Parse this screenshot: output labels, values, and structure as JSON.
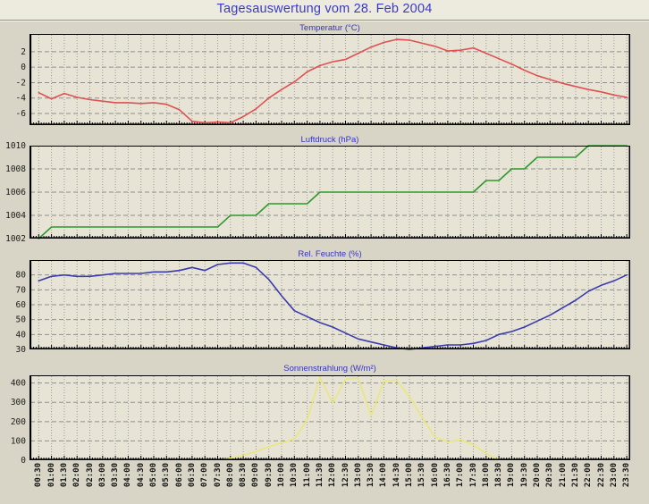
{
  "page": {
    "title": "Tagesauswertung vom 28. Feb 2004"
  },
  "colors": {
    "title_text": "#3a3ac6",
    "subtitle_text": "#3434c4",
    "page_bg": "#d8d5c6",
    "titlebar_bg": "#edeade",
    "plot_bg": "#e7e4d6",
    "grid": "#8f8f8f",
    "frame": "#000000",
    "temperature_line": "#e05050",
    "pressure_line": "#2d9a2d",
    "humidity_line": "#3a3aae",
    "radiation_line": "#e9e77c"
  },
  "x_labels": [
    "00:30",
    "01:00",
    "01:30",
    "02:00",
    "02:30",
    "03:00",
    "03:30",
    "04:00",
    "04:30",
    "05:00",
    "05:30",
    "06:00",
    "06:30",
    "07:00",
    "07:30",
    "08:00",
    "08:30",
    "09:00",
    "09:30",
    "10:00",
    "10:30",
    "11:00",
    "11:30",
    "12:00",
    "12:30",
    "13:00",
    "13:30",
    "14:00",
    "14:30",
    "15:00",
    "15:30",
    "16:00",
    "16:30",
    "17:00",
    "17:30",
    "18:00",
    "18:30",
    "19:00",
    "19:30",
    "20:00",
    "20:30",
    "21:00",
    "21:30",
    "22:00",
    "22:30",
    "23:00",
    "23:30"
  ],
  "chart_data": [
    {
      "type": "line",
      "title": "Temperatur (°C)",
      "color": "#e05050",
      "ymin": -7.5,
      "ymax": 4.3,
      "yticks": [
        2,
        0,
        -2,
        -4,
        -6
      ],
      "grid": true,
      "values": [
        -3.3,
        -4.1,
        -3.4,
        -3.9,
        -4.2,
        -4.4,
        -4.6,
        -4.6,
        -4.7,
        -4.6,
        -4.8,
        -5.5,
        -7.0,
        -7.2,
        -7.1,
        -7.2,
        -6.4,
        -5.4,
        -4.0,
        -2.9,
        -1.9,
        -0.6,
        0.2,
        0.7,
        1.0,
        1.8,
        2.6,
        3.2,
        3.6,
        3.5,
        3.1,
        2.7,
        2.1,
        2.2,
        2.5,
        1.8,
        1.1,
        0.4,
        -0.4,
        -1.1,
        -1.6,
        -2.1,
        -2.5,
        -2.9,
        -3.2,
        -3.6,
        -3.9
      ]
    },
    {
      "type": "line",
      "title": "Luftdruck (hPa)",
      "color": "#2d9a2d",
      "ymin": 1002,
      "ymax": 1010,
      "yticks": [
        1010,
        1008,
        1006,
        1004,
        1002
      ],
      "grid": true,
      "values": [
        1002,
        1003,
        1003,
        1003,
        1003,
        1003,
        1003,
        1003,
        1003,
        1003,
        1003,
        1003,
        1003,
        1003,
        1003,
        1004,
        1004,
        1004,
        1005,
        1005,
        1005,
        1005,
        1006,
        1006,
        1006,
        1006,
        1006,
        1006,
        1006,
        1006,
        1006,
        1006,
        1006,
        1006,
        1006,
        1007,
        1007,
        1008,
        1008,
        1009,
        1009,
        1009,
        1009,
        1010,
        1010,
        1010,
        1010
      ]
    },
    {
      "type": "line",
      "title": "Rel. Feuchte (%)",
      "color": "#3a3aae",
      "ymin": 30,
      "ymax": 90,
      "yticks": [
        80,
        70,
        60,
        50,
        40,
        30
      ],
      "grid": true,
      "values": [
        76,
        79,
        80,
        79,
        79,
        80,
        81,
        81,
        81,
        82,
        82,
        83,
        85,
        83,
        87,
        88,
        88,
        85,
        77,
        66,
        56,
        52,
        48,
        45,
        41,
        37,
        35,
        33,
        31,
        30,
        31,
        32,
        33,
        33,
        34,
        36,
        40,
        42,
        45,
        49,
        53,
        58,
        63,
        69,
        73,
        76,
        80
      ]
    },
    {
      "type": "line",
      "title": "Sonnenstrahlung (W/m²)",
      "color": "#e9e77c",
      "ymin": 0,
      "ymax": 440,
      "yticks": [
        400,
        300,
        200,
        100,
        0
      ],
      "grid": true,
      "values": [
        0,
        0,
        0,
        0,
        0,
        0,
        0,
        0,
        0,
        0,
        0,
        0,
        0,
        0,
        0,
        10,
        25,
        45,
        70,
        90,
        110,
        210,
        430,
        295,
        420,
        425,
        230,
        410,
        415,
        330,
        220,
        120,
        95,
        105,
        80,
        35,
        0,
        0,
        0,
        0,
        0,
        0,
        0,
        0,
        0,
        0,
        0
      ]
    }
  ]
}
